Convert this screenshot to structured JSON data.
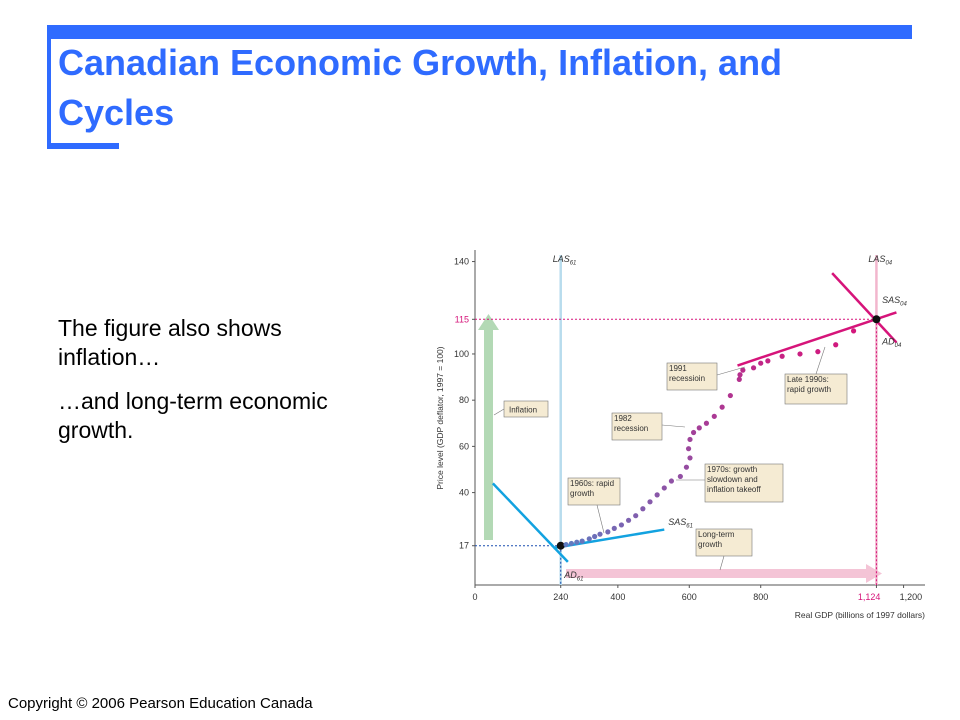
{
  "slide": {
    "title": "Canadian Economic Growth, Inflation, and Cycles",
    "paragraph_1": "The figure also shows inflation…",
    "paragraph_2": "…and long-term economic growth.",
    "footer": "Copyright © 2006 Pearson Education Canada"
  },
  "colors": {
    "accent": "#2f6bff",
    "series_early": "#5b7fc4",
    "series_late": "#d6147a",
    "las61": "#b8dced",
    "las04": "#f2b6cd",
    "ad61": "#12a2e0",
    "sas61": "#12a2e0",
    "ad04": "#d6147a",
    "sas04": "#d6147a",
    "inflation_arrow": "#b3d9b5",
    "growth_arrow": "#f4c4d6",
    "label_box": "#f5ebd3"
  },
  "chart_data": {
    "type": "scatter",
    "xlabel": "Real GDP (billions of 1997 dollars)",
    "ylabel": "Price level (GDP deflator, 1997 = 100)",
    "xlim": [
      0,
      1260
    ],
    "ylim": [
      0,
      145
    ],
    "x_ticks": [
      0,
      240,
      400,
      600,
      800,
      1124,
      1200
    ],
    "x_tick_labels": [
      "0",
      "240",
      "400",
      "600",
      "800",
      "1,124",
      "1,200"
    ],
    "y_ticks": [
      17,
      40,
      60,
      80,
      100,
      115,
      140
    ],
    "y_tick_labels": [
      "17",
      "40",
      "60",
      "80",
      "100",
      "115",
      "140"
    ],
    "series": [
      {
        "x": [
          240,
          255,
          270,
          285,
          300,
          320,
          335,
          350,
          372,
          390,
          410,
          430,
          450,
          470,
          490,
          510,
          530,
          550,
          575,
          592,
          602,
          598,
          602,
          612,
          628,
          648,
          670,
          692,
          715,
          740,
          742,
          750,
          780,
          800,
          820,
          860,
          910,
          960,
          1010,
          1060,
          1124
        ],
        "y": [
          17,
          17.5,
          18,
          18.5,
          19,
          20,
          21,
          22,
          23,
          24.5,
          26,
          28,
          30,
          33,
          36,
          39,
          42,
          45,
          47,
          51,
          55,
          59,
          63,
          66,
          68,
          70,
          73,
          77,
          82,
          89,
          91,
          93,
          94,
          96,
          97,
          99,
          100,
          101,
          104,
          110,
          115
        ]
      }
    ],
    "lines": [
      {
        "label": "LAS61",
        "type": "vertical",
        "x": 240
      },
      {
        "label": "LAS04",
        "type": "vertical",
        "x": 1124
      },
      {
        "label": "AD61",
        "x": [
          50,
          260
        ],
        "y": [
          44,
          10
        ]
      },
      {
        "label": "SAS61",
        "x": [
          220,
          530
        ],
        "y": [
          16,
          24
        ]
      },
      {
        "label": "AD04",
        "x": [
          1000,
          1180
        ],
        "y": [
          135,
          105
        ]
      },
      {
        "label": "SAS04",
        "x": [
          735,
          1180
        ],
        "y": [
          95,
          118
        ]
      }
    ],
    "annotations": [
      "Inflation",
      "1960s: rapid growth",
      "1982 recession",
      "1991 recessioin",
      "1970s: growth slowdown and inflation takeoff",
      "Late 1990s: rapid growth",
      "Long-term growth"
    ],
    "grid": false
  }
}
